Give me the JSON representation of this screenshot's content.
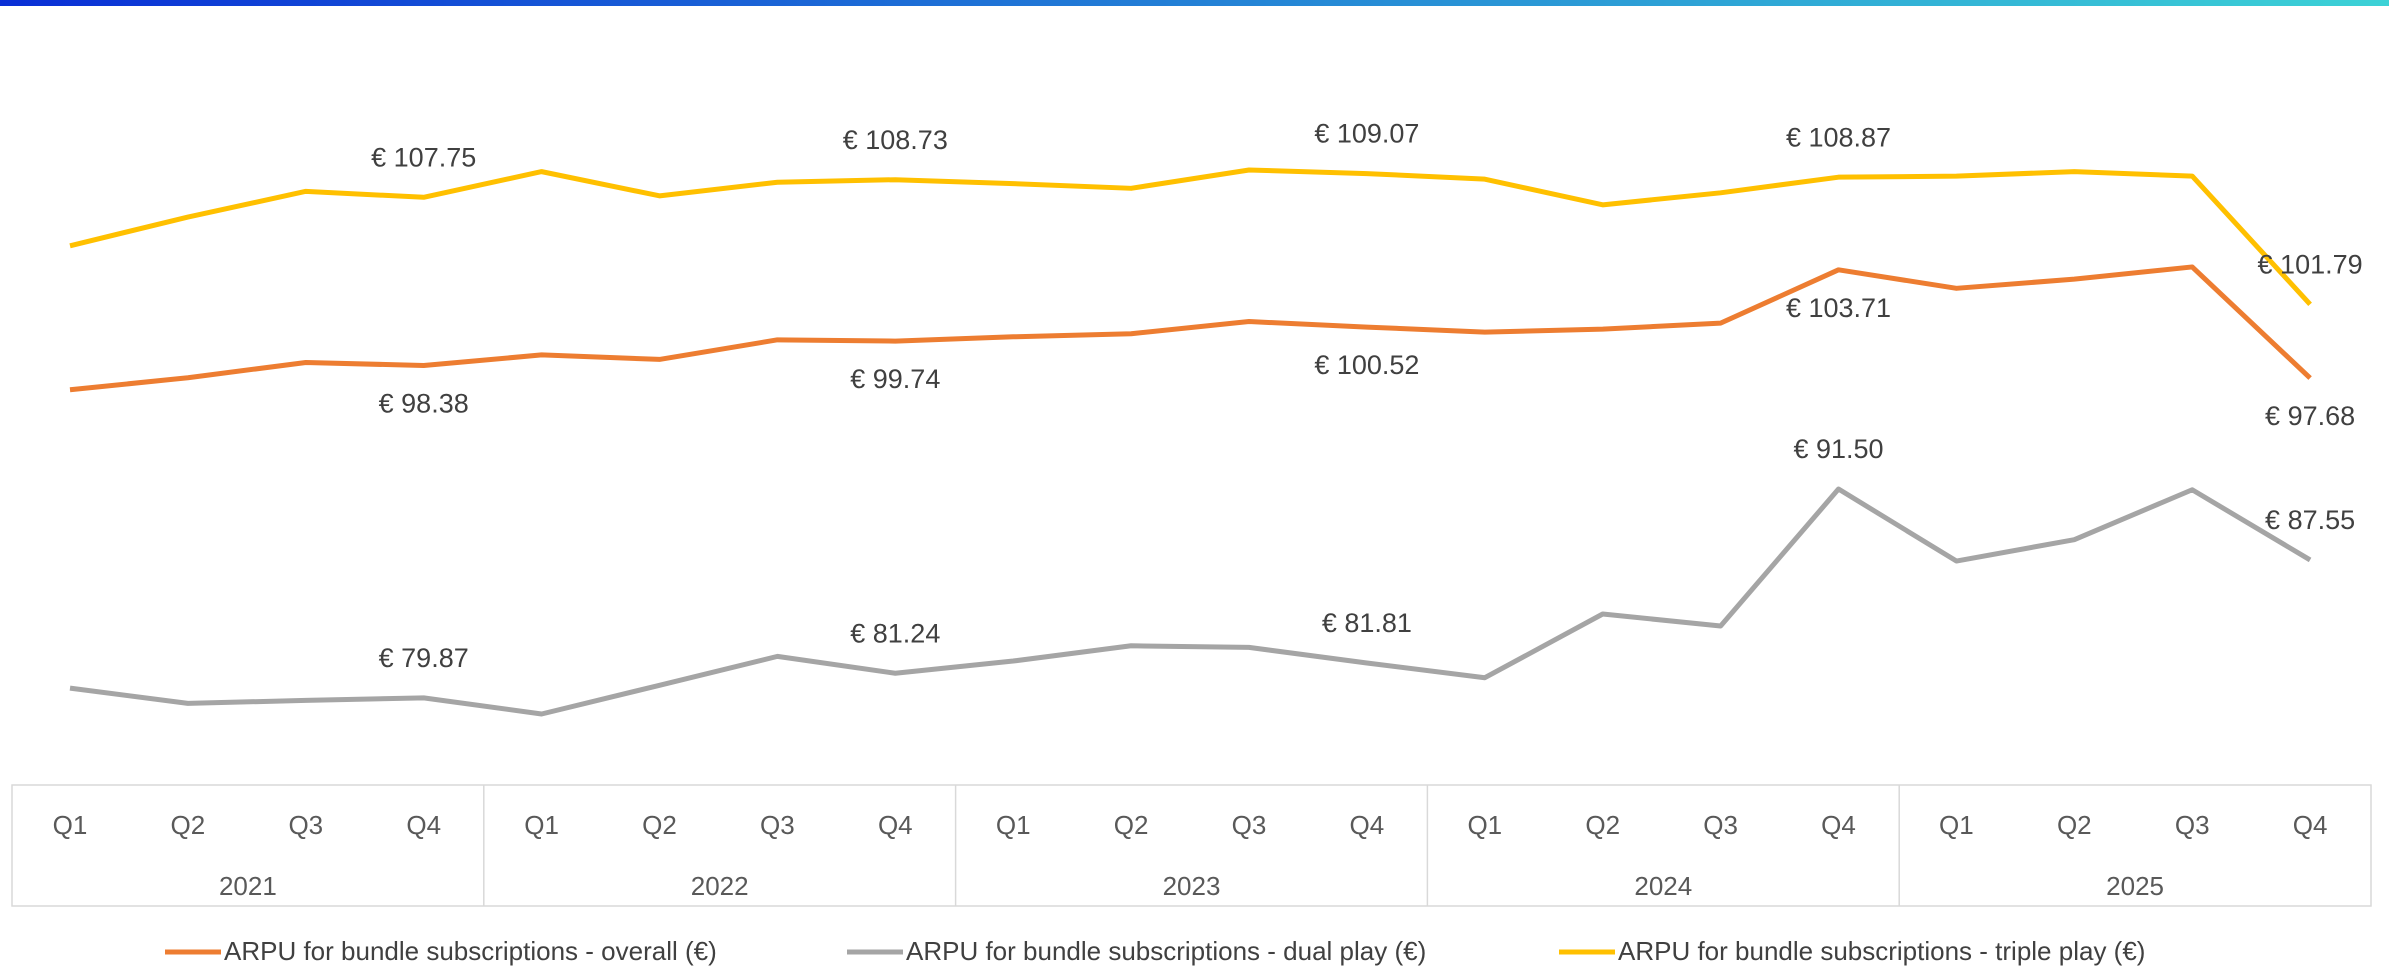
{
  "chart_data": {
    "type": "line",
    "categories": [
      "Q1",
      "Q2",
      "Q3",
      "Q4",
      "Q1",
      "Q2",
      "Q3",
      "Q4",
      "Q1",
      "Q2",
      "Q3",
      "Q4",
      "Q1",
      "Q2",
      "Q3",
      "Q4",
      "Q1",
      "Q2",
      "Q3",
      "Q4"
    ],
    "groups": [
      "2021",
      "2022",
      "2023",
      "2024",
      "2025"
    ],
    "series": [
      {
        "name": "ARPU for bundle subscriptions - overall (€)",
        "color": "#ED7D31",
        "values": [
          97.03,
          97.7,
          98.55,
          98.38,
          98.97,
          98.72,
          99.81,
          99.74,
          99.98,
          100.15,
          100.83,
          100.52,
          100.24,
          100.41,
          100.74,
          103.71,
          102.68,
          103.19,
          103.87,
          97.68
        ],
        "value_labels": [
          null,
          null,
          null,
          "€ 98.38",
          null,
          null,
          null,
          "€ 99.74",
          null,
          null,
          null,
          "€ 100.52",
          null,
          null,
          null,
          "€ 103.71",
          null,
          null,
          null,
          "€ 97.68"
        ]
      },
      {
        "name": "ARPU for bundle subscriptions - dual play (€)",
        "color": "#A5A5A5",
        "values": [
          80.41,
          79.56,
          79.73,
          79.87,
          78.97,
          80.57,
          82.18,
          81.24,
          81.92,
          82.77,
          82.68,
          81.81,
          80.99,
          84.54,
          83.87,
          91.5,
          87.49,
          88.68,
          91.46,
          87.55
        ],
        "value_labels": [
          null,
          null,
          null,
          "€ 79.87",
          null,
          null,
          null,
          "€ 81.24",
          null,
          null,
          null,
          "€ 81.81",
          null,
          null,
          null,
          "€ 91.50",
          null,
          null,
          null,
          "€ 87.55"
        ]
      },
      {
        "name": "ARPU for bundle subscriptions - triple play (€)",
        "color": "#FFC000",
        "values": [
          105.05,
          106.65,
          108.08,
          107.75,
          109.18,
          107.83,
          108.59,
          108.73,
          108.51,
          108.25,
          109.27,
          109.07,
          108.76,
          107.33,
          108.0,
          108.87,
          108.93,
          109.18,
          108.93,
          101.79
        ],
        "value_labels": [
          null,
          null,
          null,
          "€ 107.75",
          null,
          null,
          null,
          "€ 108.73",
          null,
          null,
          null,
          "€ 109.07",
          null,
          null,
          null,
          "€ 108.87",
          null,
          null,
          null,
          "€ 101.79"
        ]
      }
    ]
  }
}
